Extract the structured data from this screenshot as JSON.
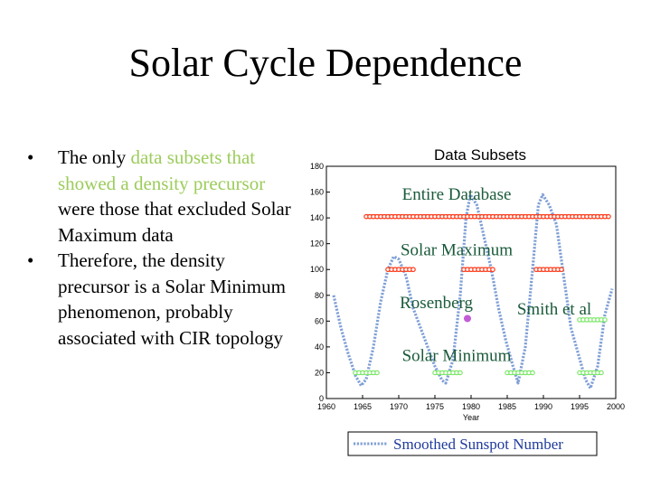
{
  "title": "Solar Cycle Dependence",
  "bullets": [
    {
      "pre": "The only ",
      "hl1": "data subsets",
      "mid1": " ",
      "hl2": "that showed a density precursor",
      "post": " were those that excluded Solar Maximum data"
    },
    {
      "text": "Therefore, the density precursor is a Solar Minimum phenomenon, probably associated with CIR topology"
    }
  ],
  "colors": {
    "highlight": "#9ccc5b",
    "sunspot": "#7f9fd6",
    "entire": "#ff3a1a",
    "maximum": "#ff3a1a",
    "minimum": "#7ee86b",
    "rosenberg": "#c35cd6",
    "smith": "#7ee86b"
  },
  "chart_data": {
    "type": "line",
    "title": "Data Subsets",
    "xlabel": "Year",
    "ylabel": "",
    "xlim": [
      1960,
      2000
    ],
    "ylim": [
      0,
      180
    ],
    "xticks": [
      1960,
      1965,
      1970,
      1975,
      1980,
      1985,
      1990,
      1995,
      2000
    ],
    "yticks": [
      0,
      20,
      40,
      60,
      80,
      100,
      120,
      140,
      160,
      180
    ],
    "grid": false,
    "legend_position": "bottom",
    "series": [
      {
        "name": "Smoothed Sunspot Number",
        "style": "dotted",
        "x": [
          1961.0,
          1962.0,
          1963.0,
          1964.0,
          1964.8,
          1965.5,
          1966.5,
          1967.5,
          1968.5,
          1969.3,
          1970.0,
          1971.0,
          1972.0,
          1973.0,
          1974.0,
          1975.0,
          1976.0,
          1976.5,
          1977.5,
          1978.5,
          1979.3,
          1979.9,
          1980.8,
          1981.8,
          1982.8,
          1983.8,
          1984.8,
          1985.8,
          1986.5,
          1987.5,
          1988.5,
          1989.3,
          1989.9,
          1990.8,
          1991.8,
          1992.8,
          1993.8,
          1994.8,
          1995.8,
          1996.5,
          1997.5,
          1998.5,
          1999.5
        ],
        "y": [
          80,
          55,
          35,
          18,
          10,
          15,
          40,
          75,
          100,
          110,
          108,
          95,
          70,
          55,
          40,
          25,
          14,
          12,
          30,
          80,
          140,
          158,
          150,
          125,
          100,
          70,
          45,
          25,
          12,
          40,
          100,
          150,
          158,
          150,
          135,
          95,
          55,
          35,
          15,
          8,
          25,
          65,
          85
        ]
      }
    ],
    "annotations": [
      {
        "label": "Entire Database",
        "color": "entire",
        "kind": "bar",
        "x_range": [
          1965.5,
          1999
        ],
        "y": 141
      },
      {
        "label": "Solar Maximum",
        "color": "maximum",
        "kind": "bars",
        "segments": [
          [
            1968.5,
            1972
          ],
          [
            1979,
            1983
          ],
          [
            1989,
            1992.5
          ]
        ],
        "y": 100
      },
      {
        "label": "Rosenberg",
        "color": "rosenberg",
        "kind": "point",
        "x": 1979.5,
        "y": 62
      },
      {
        "label": "Smith et al",
        "color": "smith",
        "kind": "bar",
        "x_range": [
          1995,
          1998.5
        ],
        "y": 61
      },
      {
        "label": "Solar Minimum",
        "color": "minimum",
        "kind": "bars",
        "segments": [
          [
            1964,
            1967
          ],
          [
            1975,
            1978.5
          ],
          [
            1985,
            1988.5
          ],
          [
            1995,
            1998
          ]
        ],
        "y": 20
      }
    ]
  }
}
